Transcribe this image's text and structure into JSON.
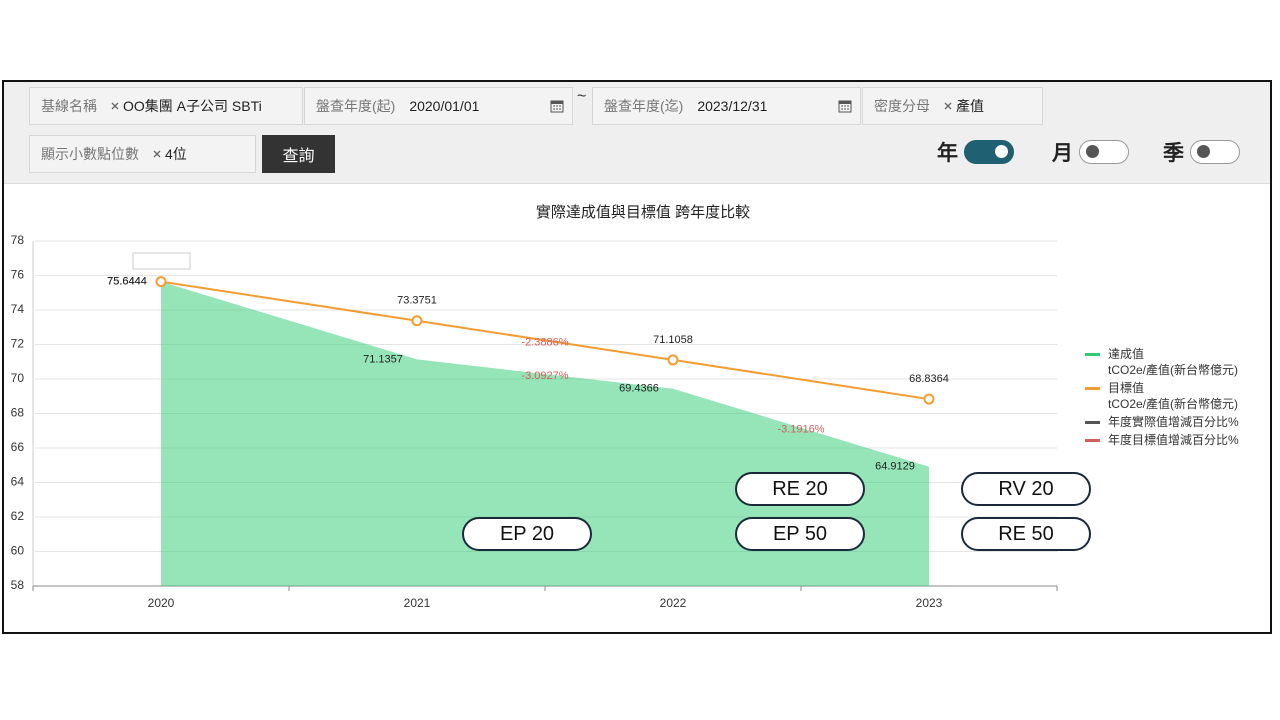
{
  "filters": [
    {
      "label": "基線名稱",
      "value": "OO集團 A子公司 SBTi"
    },
    {
      "label": "盤查年度(起)",
      "value": "2020/01/01"
    },
    {
      "label": "盤查年度(迄)",
      "value": "2023/12/31"
    },
    {
      "label": "密度分母",
      "value": "產值"
    },
    {
      "label": "顯示小數點位數",
      "value": "4位"
    }
  ],
  "separator": "~",
  "button": "查詢",
  "toggles": [
    {
      "label": "年",
      "on": true
    },
    {
      "label": "月",
      "on": false
    },
    {
      "label": "季",
      "on": false
    }
  ],
  "badges": [
    "RE 20",
    "RV 20",
    "EP 20",
    "EP 50",
    "RE 50"
  ],
  "chart_data": {
    "type": "line",
    "title": "實際達成值與目標值 跨年度比較",
    "categories": [
      "2020",
      "2021",
      "2022",
      "2023"
    ],
    "series": [
      {
        "name": "達成值\ntCO2e/產值(新台幣億元)",
        "color": "#2ecc71",
        "style": "area",
        "values": [
          75.6444,
          71.1357,
          69.4366,
          64.9129
        ]
      },
      {
        "name": "目標值\ntCO2e/產值(新台幣億元)",
        "color": "#f39c32",
        "style": "line",
        "values": [
          75.6444,
          73.3751,
          71.1058,
          68.8364
        ]
      },
      {
        "name": "年度實際值增減百分比%",
        "color": "#555555",
        "style": "label",
        "values": [
          null,
          null,
          -2.3886,
          null
        ],
        "value_labels": [
          null,
          null,
          "-2.3886%",
          null
        ]
      },
      {
        "name": "年度目標值增減百分比%",
        "color": "#d0605e",
        "style": "label",
        "values": [
          null,
          null,
          -3.0927,
          -3.1916
        ],
        "value_labels": [
          null,
          null,
          "-3.0927%",
          "-3.1916%"
        ]
      }
    ],
    "ylim": [
      58,
      78
    ],
    "yticks": [
      58,
      60,
      62,
      64,
      66,
      68,
      70,
      72,
      74,
      76,
      78
    ],
    "grid": true
  }
}
